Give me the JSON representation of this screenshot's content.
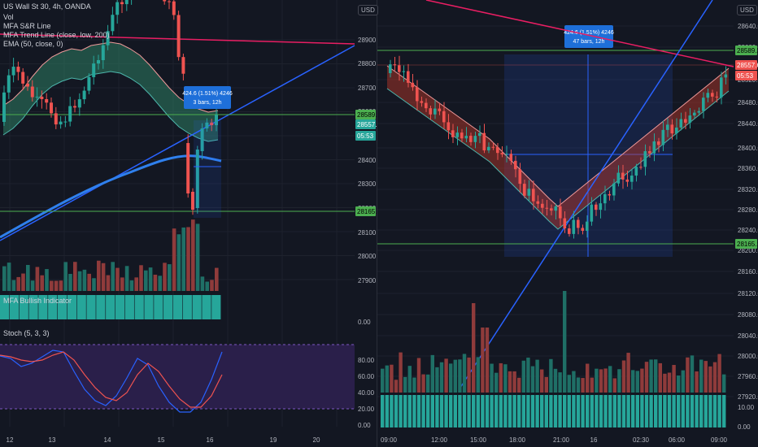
{
  "left": {
    "symbol": "US Wall St 30, 4h, OANDA",
    "legend": [
      "Vol",
      "MFA S&R Line",
      "MFA Trend Line (close, low, 200)",
      "EMA (50, close, 0)"
    ],
    "price_axis": [
      "28900.0",
      "28800.0",
      "28700.0",
      "28600.0",
      "28500.0",
      "28400.0",
      "28300.0",
      "28200.0",
      "28100.0",
      "28000.0",
      "27900.0"
    ],
    "tags": {
      "resistance": "28589.2",
      "current": "28557.6",
      "countdown": "05:53",
      "support": "28165.1"
    },
    "measure": {
      "line1": "424.6 (1.51%) 4246",
      "line2": "3 bars, 12h"
    },
    "bullish_label": "MFA Bullish Indicator",
    "stoch_label": "Stoch (5, 3, 3)",
    "stoch_axis": [
      "80.00",
      "60.00",
      "40.00",
      "20.00",
      "0.00"
    ],
    "time_axis": [
      "12",
      "13",
      "14",
      "15",
      "16",
      "19",
      "20"
    ],
    "stoch_k": [
      85,
      82,
      72,
      76,
      84,
      92,
      90,
      66,
      44,
      30,
      24,
      36,
      58,
      82,
      74,
      48,
      28,
      16,
      16,
      28,
      56,
      90
    ],
    "stoch_d": [
      86,
      84,
      80,
      78,
      80,
      86,
      90,
      80,
      62,
      46,
      34,
      30,
      40,
      62,
      76,
      66,
      48,
      32,
      22,
      22,
      36,
      62
    ],
    "bull_bars": 23,
    "zero": "0.00"
  },
  "right": {
    "price_axis": [
      "28640.0",
      "28600.0",
      "28520.0",
      "28480.0",
      "28440.0",
      "28400.0",
      "28360.0",
      "28320.0",
      "28280.0",
      "28240.0",
      "28200.0",
      "28160.0",
      "28120.0",
      "28080.0",
      "28040.0",
      "28000.0",
      "27960.0",
      "27920.0"
    ],
    "tags": {
      "resistance": "28589.2",
      "current": "28557.6",
      "countdown": "05:53",
      "support": "28165.1"
    },
    "measure": {
      "line1": "424.6 (1.51%) 4246",
      "line2": "47 bars, 12h"
    },
    "vol_axis": [
      "10.00",
      "0.00"
    ],
    "time_axis": [
      "09:00",
      "12:00",
      "15:00",
      "18:00",
      "21:00",
      "16",
      "02:30",
      "06:00",
      "09:00"
    ]
  },
  "colors": {
    "bg": "#131722",
    "up": "#26a69a",
    "down": "#ef5350",
    "green_line": "#4caf50",
    "red_line": "#e91e63",
    "trend_blue": "#2962ff",
    "ema_blue": "#2f80ed",
    "stoch_bg": "#2a1f4a"
  }
}
